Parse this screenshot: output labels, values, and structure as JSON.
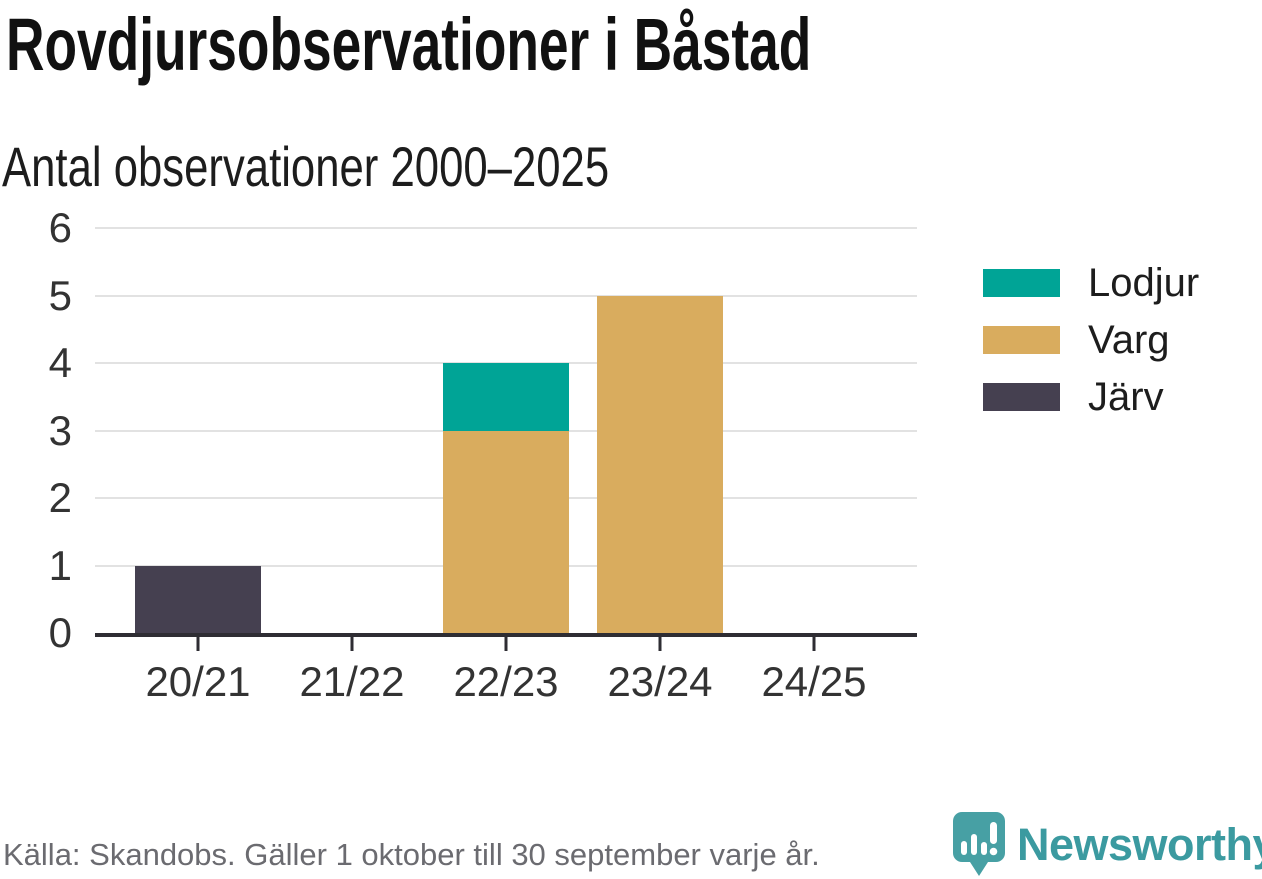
{
  "header": {
    "title": "Rovdjursobservationer i Båstad",
    "subtitle": "Antal observationer 2000–2025"
  },
  "chart_data": {
    "type": "bar",
    "stacked": true,
    "title": "Rovdjursobservationer i Båstad",
    "subtitle": "Antal observationer 2000–2025",
    "categories": [
      "20/21",
      "21/22",
      "22/23",
      "23/24",
      "24/25"
    ],
    "series": [
      {
        "name": "Lodjur",
        "color": "#00a496",
        "values": [
          0,
          0,
          1,
          0,
          0
        ]
      },
      {
        "name": "Varg",
        "color": "#d9ac5e",
        "values": [
          0,
          0,
          3,
          5,
          0
        ]
      },
      {
        "name": "Järv",
        "color": "#454050",
        "values": [
          1,
          0,
          0,
          0,
          0
        ]
      }
    ],
    "stack_order_top_to_bottom": [
      "Lodjur",
      "Varg",
      "Järv"
    ],
    "xlabel": "",
    "ylabel": "",
    "ylim": [
      0,
      6
    ],
    "yticks": [
      0,
      1,
      2,
      3,
      4,
      5,
      6
    ],
    "grid": true,
    "legend_position": "right"
  },
  "footer": {
    "source": "Källa: Skandobs. Gäller 1 oktober till 30 september varje år.",
    "brand": "Newsworthy"
  },
  "colors": {
    "axis": "#2e2d33",
    "gridline": "#e2e2e2",
    "tick_label": "#333333",
    "title_text": "#111111",
    "footer_text": "#6b6b70",
    "brand_teal": "#3b9aa0",
    "icon_teal": "#47a0a4"
  }
}
